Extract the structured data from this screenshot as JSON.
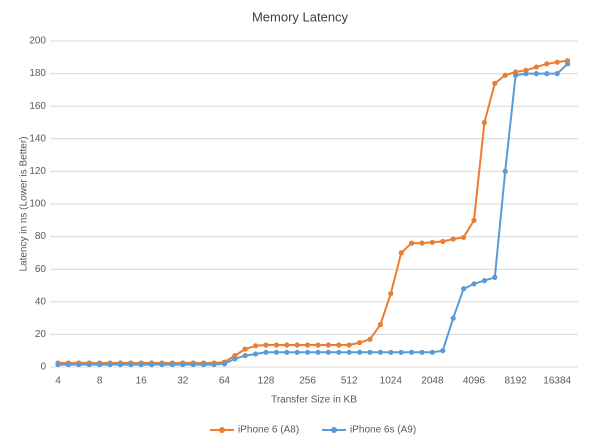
{
  "chart_data": {
    "type": "line",
    "title": "Memory Latency",
    "x_label": "Transfer Size in KB",
    "y_label": "Latency in ns (Lower is Better)",
    "categories": [
      "4",
      null,
      null,
      null,
      "8",
      null,
      null,
      null,
      "16",
      null,
      null,
      null,
      "32",
      null,
      null,
      null,
      "64",
      null,
      null,
      null,
      "128",
      null,
      null,
      null,
      "256",
      null,
      null,
      null,
      "512",
      null,
      null,
      null,
      "1024",
      null,
      null,
      null,
      "2048",
      null,
      null,
      null,
      "4096",
      null,
      null,
      null,
      "8192",
      null,
      null,
      null,
      "16384",
      null
    ],
    "series": [
      {
        "name": "iPhone 6 (A8)",
        "color": "#ed7d31",
        "values": [
          2.5,
          2.5,
          2.5,
          2.5,
          2.5,
          2.5,
          2.5,
          2.5,
          2.5,
          2.5,
          2.5,
          2.5,
          2.5,
          2.5,
          2.5,
          2.5,
          3,
          7,
          11,
          13,
          13.5,
          13.5,
          13.5,
          13.5,
          13.5,
          13.5,
          13.5,
          13.5,
          13.5,
          15,
          17,
          26,
          45,
          70,
          76,
          76,
          76.5,
          77,
          78.5,
          79.5,
          90,
          150,
          174,
          179,
          181,
          182,
          184,
          186,
          187,
          188
        ]
      },
      {
        "name": "iPhone 6s (A9)",
        "color": "#5b9bd5",
        "values": [
          1.5,
          1.5,
          1.5,
          1.5,
          1.5,
          1.5,
          1.5,
          1.5,
          1.5,
          1.5,
          1.5,
          1.5,
          1.5,
          1.5,
          1.5,
          1.5,
          2,
          5,
          7,
          8,
          9,
          9,
          9,
          9,
          9,
          9,
          9,
          9,
          9,
          9,
          9,
          9,
          9,
          9,
          9,
          9,
          9,
          10,
          30,
          48,
          51,
          53,
          55,
          120,
          179,
          180,
          180,
          180,
          180,
          186
        ]
      }
    ],
    "ylim": [
      0,
      200
    ],
    "yticks": [
      0,
      20,
      40,
      60,
      80,
      100,
      120,
      140,
      160,
      180,
      200
    ],
    "grid": true,
    "legend": "bottom"
  }
}
